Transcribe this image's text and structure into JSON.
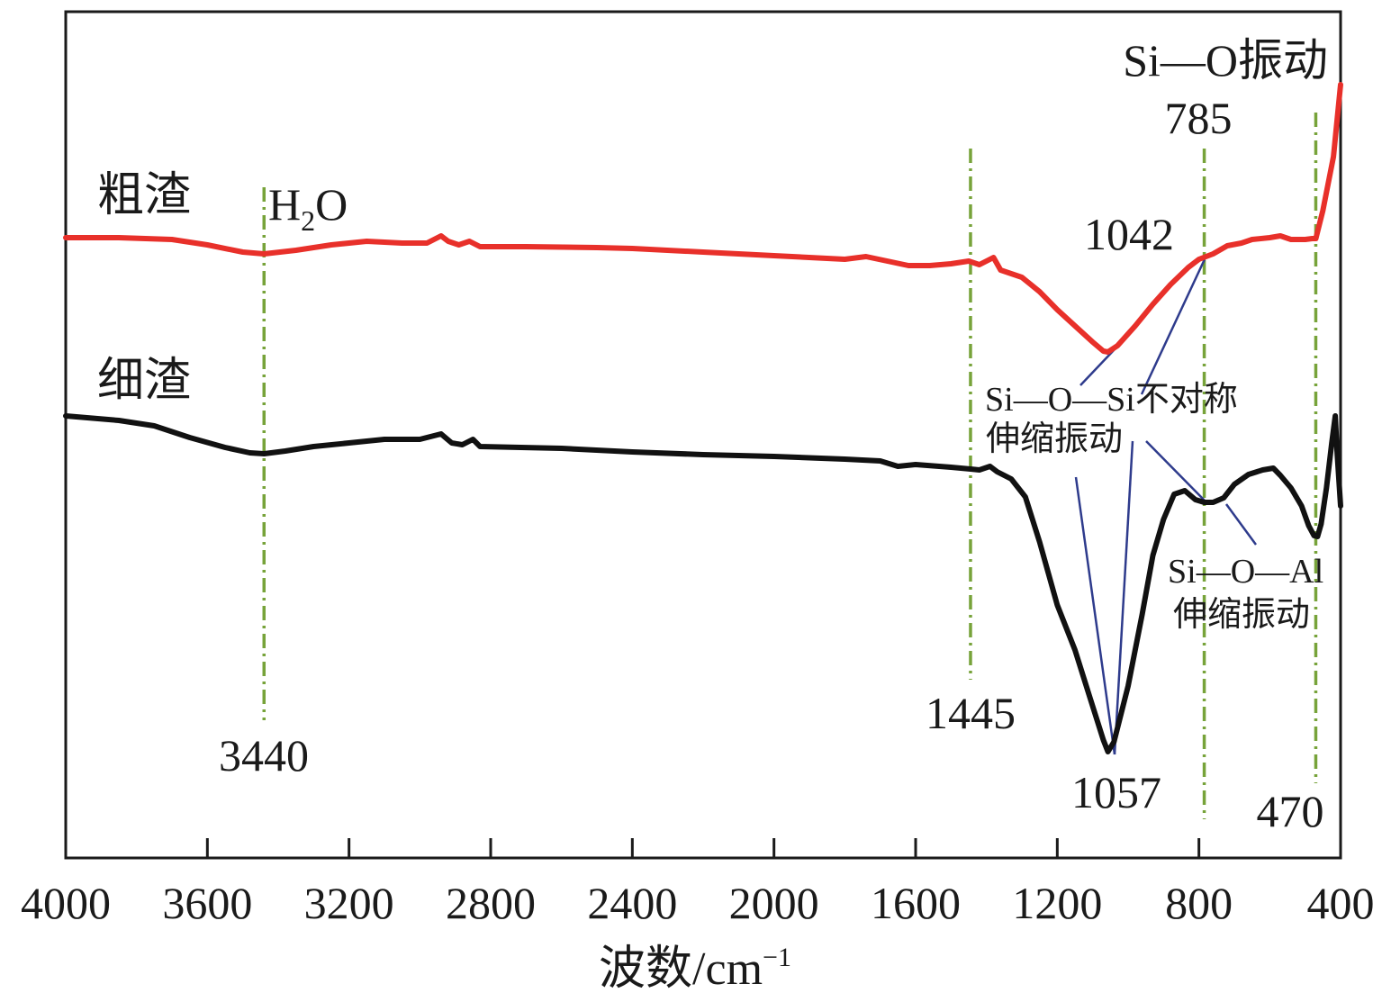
{
  "chart_data": {
    "type": "line",
    "xlabel": "波数/cm",
    "xlabel_sup": "−1",
    "xlim": [
      4000,
      400
    ],
    "x_reversed": true,
    "ylabel": "",
    "y_ticks": false,
    "grid": false,
    "x_ticks": [
      4000,
      3600,
      3200,
      2800,
      2400,
      2000,
      1600,
      1200,
      800,
      400
    ],
    "y_scale": "relative transmittance (arbitrary offset per series, 0 = baseline)",
    "series": [
      {
        "name": "粗渣",
        "color": "#e8302a",
        "points": [
          [
            4000,
            0
          ],
          [
            3850,
            0
          ],
          [
            3700,
            -2
          ],
          [
            3600,
            -8
          ],
          [
            3500,
            -16
          ],
          [
            3440,
            -18
          ],
          [
            3350,
            -14
          ],
          [
            3250,
            -8
          ],
          [
            3150,
            -4
          ],
          [
            3050,
            -6
          ],
          [
            2980,
            -6
          ],
          [
            2940,
            2
          ],
          [
            2920,
            -4
          ],
          [
            2890,
            -8
          ],
          [
            2860,
            -4
          ],
          [
            2830,
            -10
          ],
          [
            2700,
            -10
          ],
          [
            2500,
            -11
          ],
          [
            2400,
            -12
          ],
          [
            2200,
            -16
          ],
          [
            2000,
            -20
          ],
          [
            1800,
            -24
          ],
          [
            1740,
            -21
          ],
          [
            1680,
            -26
          ],
          [
            1620,
            -31
          ],
          [
            1560,
            -31
          ],
          [
            1500,
            -29
          ],
          [
            1450,
            -26
          ],
          [
            1420,
            -30
          ],
          [
            1380,
            -22
          ],
          [
            1360,
            -36
          ],
          [
            1300,
            -44
          ],
          [
            1250,
            -60
          ],
          [
            1200,
            -80
          ],
          [
            1150,
            -98
          ],
          [
            1100,
            -116
          ],
          [
            1070,
            -126
          ],
          [
            1057,
            -127
          ],
          [
            1030,
            -120
          ],
          [
            980,
            -98
          ],
          [
            930,
            -74
          ],
          [
            880,
            -52
          ],
          [
            830,
            -33
          ],
          [
            800,
            -24
          ],
          [
            760,
            -18
          ],
          [
            720,
            -9
          ],
          [
            680,
            -6
          ],
          [
            650,
            -2
          ],
          [
            600,
            0
          ],
          [
            570,
            2
          ],
          [
            540,
            -2
          ],
          [
            500,
            -2
          ],
          [
            480,
            -1
          ],
          [
            470,
            -1
          ],
          [
            450,
            30
          ],
          [
            420,
            90
          ],
          [
            400,
            170
          ]
        ]
      },
      {
        "name": "细渣",
        "color": "#111111",
        "points": [
          [
            4000,
            0
          ],
          [
            3850,
            -5
          ],
          [
            3750,
            -11
          ],
          [
            3650,
            -24
          ],
          [
            3550,
            -35
          ],
          [
            3480,
            -41
          ],
          [
            3440,
            -42
          ],
          [
            3380,
            -39
          ],
          [
            3300,
            -34
          ],
          [
            3200,
            -30
          ],
          [
            3100,
            -26
          ],
          [
            3000,
            -26
          ],
          [
            2940,
            -20
          ],
          [
            2910,
            -30
          ],
          [
            2880,
            -32
          ],
          [
            2850,
            -26
          ],
          [
            2830,
            -34
          ],
          [
            2600,
            -36
          ],
          [
            2400,
            -40
          ],
          [
            2200,
            -43
          ],
          [
            2000,
            -45
          ],
          [
            1800,
            -48
          ],
          [
            1700,
            -50
          ],
          [
            1650,
            -56
          ],
          [
            1600,
            -54
          ],
          [
            1500,
            -57
          ],
          [
            1445,
            -59
          ],
          [
            1420,
            -60
          ],
          [
            1390,
            -56
          ],
          [
            1370,
            -62
          ],
          [
            1330,
            -70
          ],
          [
            1290,
            -90
          ],
          [
            1250,
            -140
          ],
          [
            1200,
            -210
          ],
          [
            1150,
            -260
          ],
          [
            1110,
            -310
          ],
          [
            1070,
            -360
          ],
          [
            1057,
            -373
          ],
          [
            1040,
            -362
          ],
          [
            1000,
            -300
          ],
          [
            960,
            -220
          ],
          [
            930,
            -155
          ],
          [
            900,
            -115
          ],
          [
            870,
            -87
          ],
          [
            840,
            -83
          ],
          [
            810,
            -93
          ],
          [
            785,
            -96
          ],
          [
            760,
            -96
          ],
          [
            730,
            -91
          ],
          [
            700,
            -76
          ],
          [
            660,
            -65
          ],
          [
            620,
            -60
          ],
          [
            590,
            -58
          ],
          [
            570,
            -66
          ],
          [
            540,
            -80
          ],
          [
            510,
            -100
          ],
          [
            490,
            -122
          ],
          [
            475,
            -133
          ],
          [
            465,
            -134
          ],
          [
            455,
            -120
          ],
          [
            440,
            -80
          ],
          [
            425,
            -30
          ],
          [
            415,
            0
          ],
          [
            410,
            -40
          ],
          [
            400,
            -100
          ]
        ]
      }
    ],
    "reference_lines": [
      {
        "x": 3440,
        "label": "3440",
        "color": "#77a33a"
      },
      {
        "x": 1445,
        "label": "1445",
        "color": "#77a33a"
      },
      {
        "x": 785,
        "label": "785",
        "color": "#77a33a"
      },
      {
        "x": 470,
        "label": "470",
        "color": "#77a33a"
      }
    ],
    "annotations": {
      "h2o": {
        "main": "H",
        "sub": "2",
        "tail": "O"
      },
      "si_o_vib": "Si—O振动",
      "peak_1042": "1042",
      "peak_1057": "1057",
      "si_o_si_line1": "Si—O—Si不对称",
      "si_o_si_line2": "伸缩振动",
      "si_o_al_line1": "Si—O—Al",
      "si_o_al_line2": "伸缩振动",
      "label_coarse": "粗渣",
      "label_fine": "细渣"
    },
    "leader_line_color": "#2e3b8c"
  }
}
